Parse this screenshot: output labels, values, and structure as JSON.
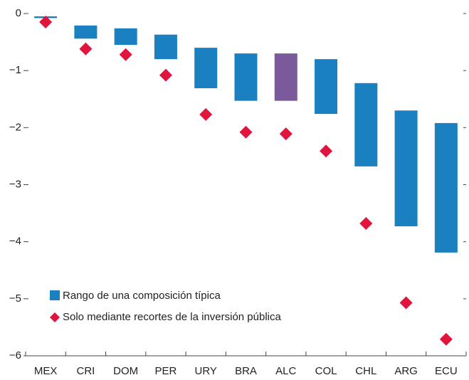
{
  "chart_data": {
    "type": "range-bar",
    "categories": [
      "MEX",
      "CRI",
      "DOM",
      "PER",
      "URY",
      "BRA",
      "ALC",
      "COL",
      "CHL",
      "ARG",
      "ECU"
    ],
    "series": [
      {
        "name": "Rango de una composición típica",
        "color": "#1a80bf",
        "colors": [
          "#1a80bf",
          "#1a80bf",
          "#1a80bf",
          "#1a80bf",
          "#1a80bf",
          "#1a80bf",
          "#7b5a9c",
          "#1a80bf",
          "#1a80bf",
          "#1a80bf",
          "#1a80bf"
        ],
        "high": [
          -0.05,
          -0.21,
          -0.26,
          -0.37,
          -0.6,
          -0.7,
          -0.7,
          -0.8,
          -1.22,
          -1.7,
          -1.92
        ],
        "low": [
          -0.08,
          -0.44,
          -0.55,
          -0.8,
          -1.31,
          -1.53,
          -1.53,
          -1.76,
          -2.68,
          -3.73,
          -4.19
        ]
      },
      {
        "name": "Solo mediante recortes de la inversión pública",
        "color": "#e0143c",
        "values": [
          -0.15,
          -0.62,
          -0.72,
          -1.08,
          -1.77,
          -2.08,
          -2.11,
          -2.41,
          -3.68,
          -5.07,
          -5.71
        ]
      }
    ],
    "ylim": [
      -6,
      0.05
    ],
    "yticks": [
      0,
      {
        "value": -1,
        "label": "−1"
      },
      {
        "value": -2,
        "label": "−2"
      },
      {
        "value": -3,
        "label": "−3"
      },
      {
        "value": -4,
        "label": "−4"
      },
      {
        "value": -5,
        "label": "−5"
      },
      {
        "value": -6,
        "label": "−6"
      }
    ]
  }
}
